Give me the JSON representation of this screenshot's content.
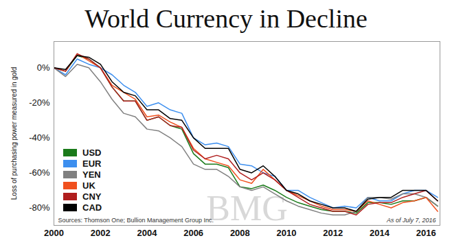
{
  "chart_data": {
    "type": "line",
    "title": "World Currency in Decline",
    "y_label": "Loss of purchasing power measured in gold",
    "annotations": [
      "Sources: Thomson One; Bullion Management Group Inc.",
      "As of July 7, 2016",
      "BMG"
    ],
    "x": [
      2000,
      2000.5,
      2001,
      2001.5,
      2002,
      2002.5,
      2003,
      2003.5,
      2004,
      2004.5,
      2005,
      2005.5,
      2006,
      2006.5,
      2007,
      2007.5,
      2008,
      2008.5,
      2009,
      2009.5,
      2010,
      2010.5,
      2011,
      2011.5,
      2012,
      2012.5,
      2013,
      2013.5,
      2014,
      2014.5,
      2015,
      2015.5,
      2016,
      2016.5
    ],
    "series": [
      {
        "name": "USD",
        "color": "#1a7a1a",
        "values": [
          0,
          -2,
          7,
          5,
          0,
          -11,
          -19,
          -19,
          -30,
          -28,
          -33,
          -35,
          -49,
          -55,
          -55,
          -57,
          -68,
          -69,
          -67,
          -70,
          -74,
          -77,
          -79,
          -81,
          -82,
          -82,
          -83,
          -77,
          -77,
          -78,
          -76,
          -76,
          -74,
          -79
        ]
      },
      {
        "name": "EUR",
        "color": "#3d8fef",
        "values": [
          0,
          -4,
          5,
          2,
          0,
          -4,
          -10,
          -14,
          -22,
          -20,
          -24,
          -26,
          -40,
          -44,
          -43,
          -45,
          -55,
          -56,
          -60,
          -62,
          -70,
          -70,
          -74,
          -77,
          -80,
          -79,
          -80,
          -74,
          -76,
          -76,
          -72,
          -70,
          -70,
          -74
        ]
      },
      {
        "name": "YEN",
        "color": "#808080",
        "values": [
          0,
          -5,
          2,
          0,
          -8,
          -18,
          -26,
          -28,
          -35,
          -36,
          -40,
          -45,
          -55,
          -58,
          -58,
          -62,
          -68,
          -70,
          -68,
          -72,
          -76,
          -79,
          -81,
          -83,
          -84,
          -84,
          -82,
          -74,
          -74,
          -75,
          -72,
          -72,
          -74,
          -79
        ]
      },
      {
        "name": "UK",
        "color": "#f0501e",
        "values": [
          0,
          -2,
          8,
          4,
          0,
          -10,
          -14,
          -18,
          -28,
          -27,
          -31,
          -34,
          -46,
          -52,
          -54,
          -56,
          -64,
          -66,
          -58,
          -64,
          -70,
          -73,
          -76,
          -79,
          -81,
          -81,
          -82,
          -76,
          -78,
          -80,
          -77,
          -76,
          -74,
          -82
        ]
      },
      {
        "name": "CNY",
        "color": "#b01e1e",
        "values": [
          0,
          -2,
          8,
          5,
          0,
          -11,
          -19,
          -19,
          -30,
          -28,
          -33,
          -34,
          -47,
          -52,
          -50,
          -52,
          -60,
          -64,
          -60,
          -64,
          -70,
          -74,
          -78,
          -80,
          -82,
          -82,
          -84,
          -78,
          -77,
          -77,
          -74,
          -72,
          -70,
          -76
        ]
      },
      {
        "name": "CAD",
        "color": "#000000",
        "values": [
          0,
          -1,
          7,
          6,
          2,
          -8,
          -14,
          -16,
          -24,
          -24,
          -29,
          -30,
          -40,
          -46,
          -46,
          -46,
          -58,
          -60,
          -56,
          -62,
          -70,
          -72,
          -76,
          -78,
          -80,
          -80,
          -82,
          -75,
          -74,
          -74,
          -70,
          -70,
          -70,
          -76
        ]
      }
    ],
    "xlim": [
      2000,
      2016.6
    ],
    "xticks": [
      2000,
      2002,
      2004,
      2006,
      2008,
      2010,
      2012,
      2014,
      2016
    ],
    "ylim": [
      -90,
      15
    ],
    "yticks": [
      {
        "value": 0,
        "label": "0%"
      },
      {
        "value": -20,
        "label": "-20%"
      },
      {
        "value": -40,
        "label": "-40%"
      },
      {
        "value": -60,
        "label": "-60%"
      },
      {
        "value": -80,
        "label": "-80%"
      }
    ],
    "grid": false,
    "legend": "lower left"
  }
}
